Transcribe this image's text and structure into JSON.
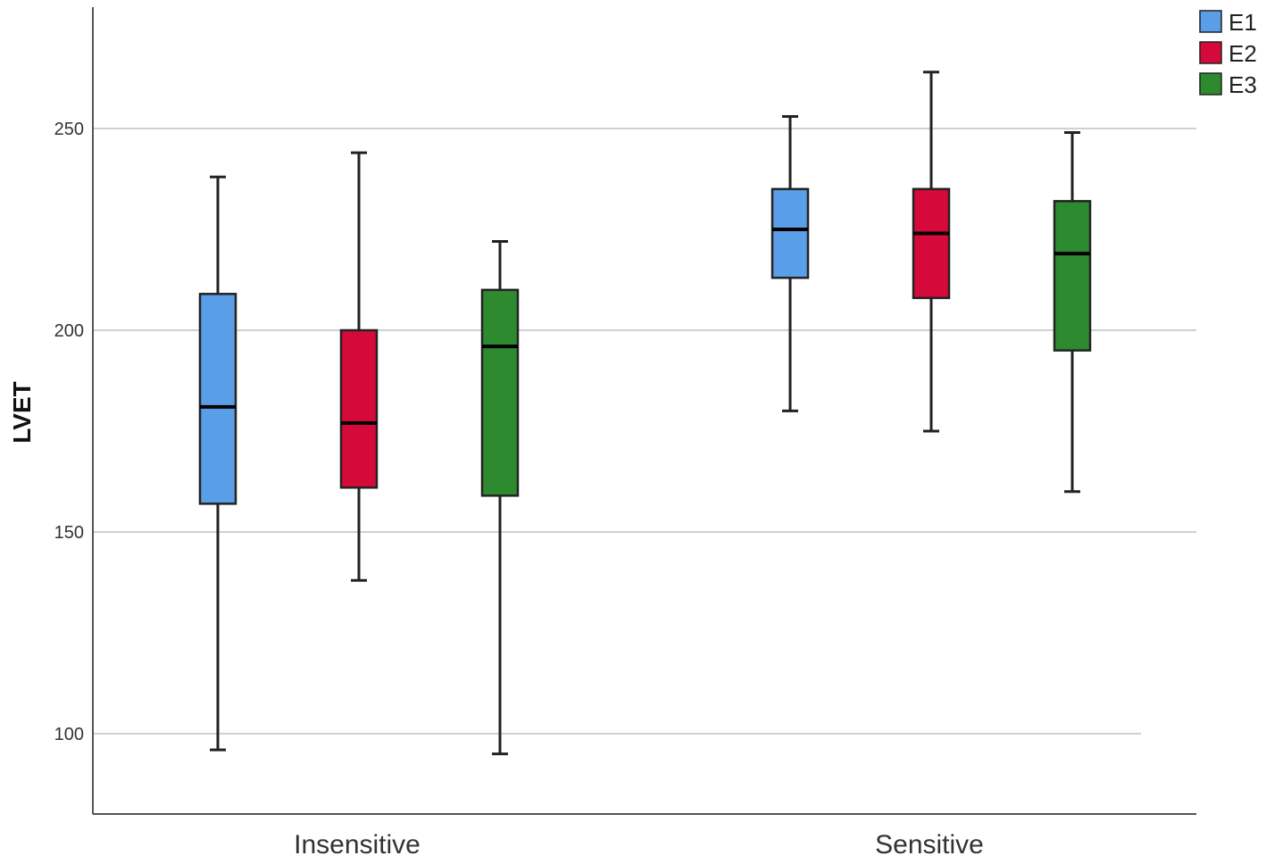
{
  "chart_data": {
    "type": "boxplot",
    "title": "",
    "xlabel": "",
    "ylabel": "LVET",
    "ylim": [
      80,
      280
    ],
    "yticks": [
      100,
      150,
      200,
      250
    ],
    "grid": true,
    "legend_position": "top-right",
    "categories": [
      "Insensitive",
      "Sensitive"
    ],
    "series": [
      {
        "name": "E1",
        "color": "#5b9ee8",
        "boxes": [
          {
            "category": "Insensitive",
            "min": 96,
            "q1": 157,
            "median": 181,
            "q3": 209,
            "max": 238
          },
          {
            "category": "Sensitive",
            "min": 180,
            "q1": 213,
            "median": 225,
            "q3": 235,
            "max": 253
          }
        ]
      },
      {
        "name": "E2",
        "color": "#d6093b",
        "boxes": [
          {
            "category": "Insensitive",
            "min": 138,
            "q1": 161,
            "median": 177,
            "q3": 200,
            "max": 244
          },
          {
            "category": "Sensitive",
            "min": 175,
            "q1": 208,
            "median": 224,
            "q3": 235,
            "max": 264
          }
        ]
      },
      {
        "name": "E3",
        "color": "#2e8a2e",
        "boxes": [
          {
            "category": "Insensitive",
            "min": 95,
            "q1": 159,
            "median": 196,
            "q3": 210,
            "max": 222
          },
          {
            "category": "Sensitive",
            "min": 160,
            "q1": 195,
            "median": 219,
            "q3": 232,
            "max": 249
          }
        ]
      }
    ]
  }
}
